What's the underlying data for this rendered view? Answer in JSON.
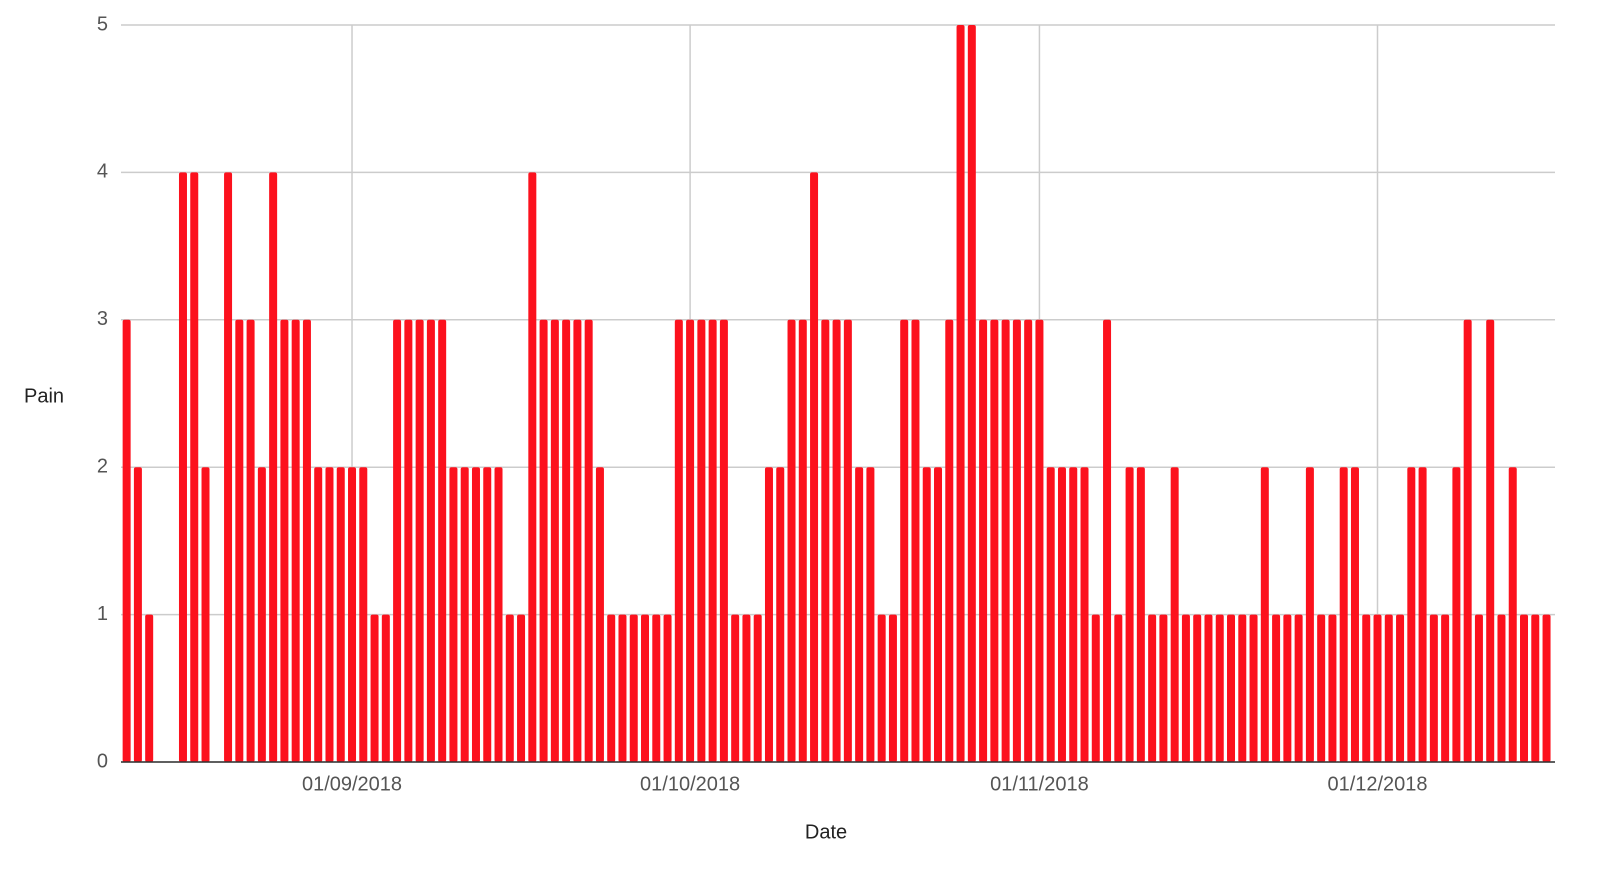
{
  "chart_data": {
    "type": "bar",
    "x_label": "Date",
    "y_label": "Pain",
    "color": "#fc111d",
    "grid": true,
    "x": [
      "2018-08-12",
      "2018-08-13",
      "2018-08-14",
      "2018-08-17",
      "2018-08-18",
      "2018-08-19",
      "2018-08-21",
      "2018-08-22",
      "2018-08-23",
      "2018-08-24",
      "2018-08-25",
      "2018-08-26",
      "2018-08-27",
      "2018-08-28",
      "2018-08-29",
      "2018-08-30",
      "2018-08-31",
      "2018-09-01",
      "2018-09-02",
      "2018-09-03",
      "2018-09-04",
      "2018-09-05",
      "2018-09-06",
      "2018-09-07",
      "2018-09-08",
      "2018-09-09",
      "2018-09-10",
      "2018-09-11",
      "2018-09-12",
      "2018-09-13",
      "2018-09-14",
      "2018-09-15",
      "2018-09-16",
      "2018-09-17",
      "2018-09-18",
      "2018-09-19",
      "2018-09-20",
      "2018-09-21",
      "2018-09-22",
      "2018-09-23",
      "2018-09-24",
      "2018-09-25",
      "2018-09-26",
      "2018-09-27",
      "2018-09-28",
      "2018-09-29",
      "2018-09-30",
      "2018-10-01",
      "2018-10-02",
      "2018-10-03",
      "2018-10-04",
      "2018-10-05",
      "2018-10-06",
      "2018-10-07",
      "2018-10-08",
      "2018-10-09",
      "2018-10-10",
      "2018-10-11",
      "2018-10-12",
      "2018-10-13",
      "2018-10-14",
      "2018-10-15",
      "2018-10-16",
      "2018-10-17",
      "2018-10-18",
      "2018-10-19",
      "2018-10-20",
      "2018-10-21",
      "2018-10-22",
      "2018-10-23",
      "2018-10-24",
      "2018-10-25",
      "2018-10-26",
      "2018-10-27",
      "2018-10-28",
      "2018-10-29",
      "2018-10-30",
      "2018-10-31",
      "2018-11-01",
      "2018-11-02",
      "2018-11-03",
      "2018-11-04",
      "2018-11-05",
      "2018-11-06",
      "2018-11-07",
      "2018-11-08",
      "2018-11-09",
      "2018-11-10",
      "2018-11-11",
      "2018-11-12",
      "2018-11-13",
      "2018-11-14",
      "2018-11-15",
      "2018-11-16",
      "2018-11-17",
      "2018-11-18",
      "2018-11-19",
      "2018-11-20",
      "2018-11-21",
      "2018-11-22",
      "2018-11-23",
      "2018-11-24",
      "2018-11-25",
      "2018-11-26",
      "2018-11-27",
      "2018-11-28",
      "2018-11-29",
      "2018-11-30",
      "2018-12-01",
      "2018-12-02",
      "2018-12-03",
      "2018-12-04",
      "2018-12-05",
      "2018-12-06",
      "2018-12-07",
      "2018-12-08",
      "2018-12-09",
      "2018-12-10",
      "2018-12-11",
      "2018-12-12",
      "2018-12-13",
      "2018-12-14",
      "2018-12-15",
      "2018-12-16"
    ],
    "values": [
      3,
      2,
      1,
      4,
      4,
      2,
      4,
      3,
      3,
      2,
      4,
      3,
      3,
      3,
      2,
      2,
      2,
      2,
      2,
      1,
      1,
      3,
      3,
      3,
      3,
      3,
      2,
      2,
      2,
      2,
      2,
      1,
      1,
      4,
      3,
      3,
      3,
      3,
      3,
      2,
      1,
      1,
      1,
      1,
      1,
      1,
      3,
      3,
      3,
      3,
      3,
      1,
      1,
      1,
      2,
      2,
      3,
      3,
      4,
      3,
      3,
      3,
      2,
      2,
      1,
      1,
      3,
      3,
      2,
      2,
      3,
      5,
      5,
      3,
      3,
      3,
      3,
      3,
      3,
      2,
      2,
      2,
      2,
      1,
      3,
      1,
      2,
      2,
      1,
      1,
      2,
      1,
      1,
      1,
      1,
      1,
      1,
      1,
      2,
      1,
      1,
      1,
      2,
      1,
      1,
      2,
      2,
      1,
      1,
      1,
      1,
      2,
      2,
      1,
      1,
      2,
      3,
      1,
      3,
      1,
      2,
      1,
      1,
      1
    ],
    "xlim": [
      "2018-08-11T12:00:00Z",
      "2018-12-16T18:00:00Z"
    ],
    "xticks": [
      {
        "value": "2018-09-01",
        "label": "01/09/2018"
      },
      {
        "value": "2018-10-01",
        "label": "01/10/2018"
      },
      {
        "value": "2018-11-01",
        "label": "01/11/2018"
      },
      {
        "value": "2018-12-01",
        "label": "01/12/2018"
      }
    ],
    "ylim": [
      0,
      5
    ],
    "yticks": [
      0,
      1,
      2,
      3,
      4,
      5
    ]
  }
}
